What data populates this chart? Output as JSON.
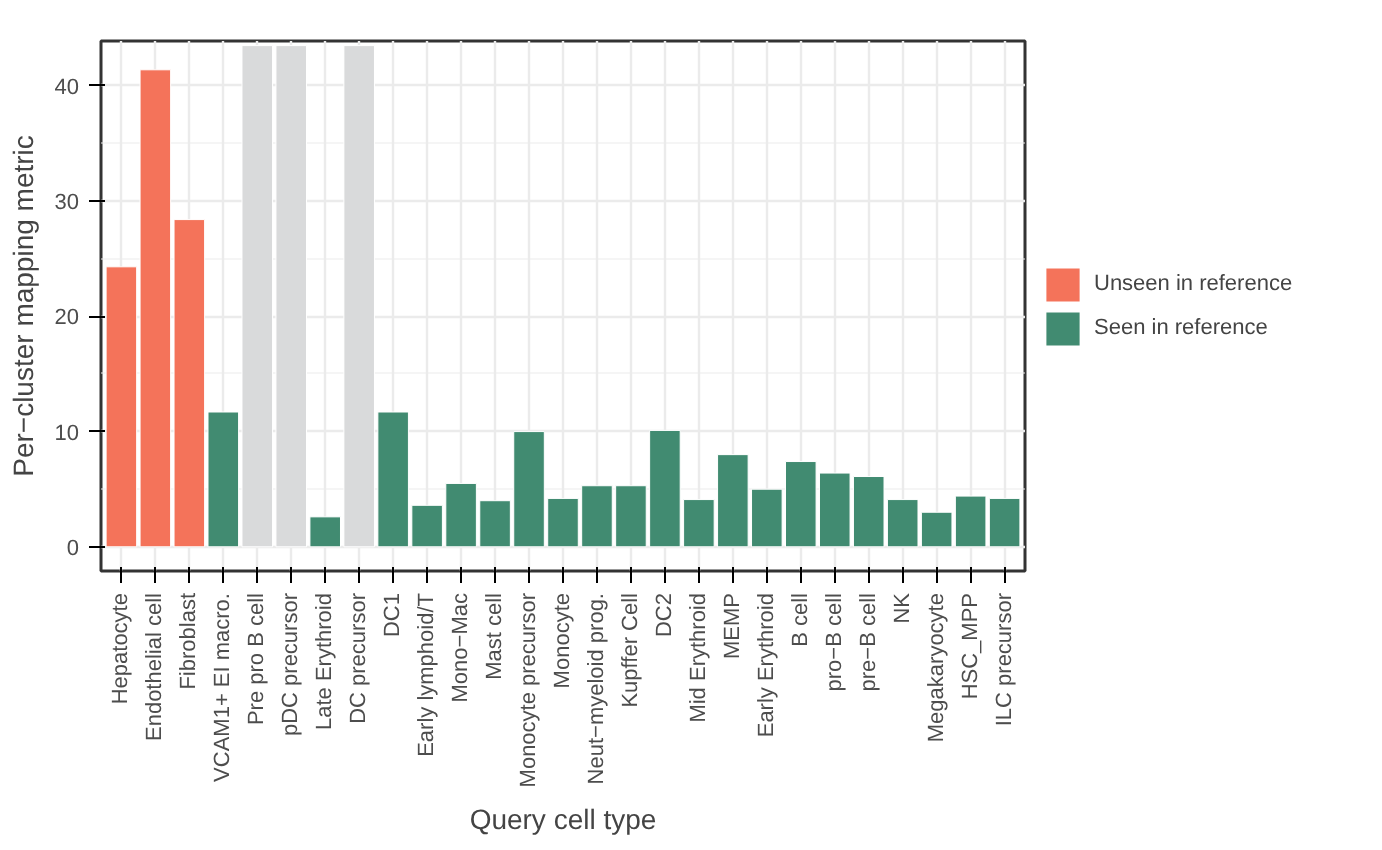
{
  "chart_data": {
    "type": "bar",
    "xlabel": "Query cell type",
    "ylabel": "Per−cluster mapping metric",
    "categories": [
      "Hepatocyte",
      "Endothelial cell",
      "Fibroblast",
      "VCAM1+ EI macro.",
      "Pre pro B cell",
      "pDC precursor",
      "Late Erythroid",
      "DC precursor",
      "DC1",
      "Early lymphoid/T",
      "Mono−Mac",
      "Mast cell",
      "Monocyte precursor",
      "Monocyte",
      "Neut−myeloid prog.",
      "Kupffer Cell",
      "DC2",
      "Mid Erythroid",
      "MEMP",
      "Early Erythroid",
      "B cell",
      "pro−B cell",
      "pre−B cell",
      "NK",
      "Megakaryocyte",
      "HSC_MPP",
      "ILC precursor"
    ],
    "series": [
      {
        "color": "#d9dadb",
        "values": [
          null,
          null,
          null,
          null,
          43.5,
          43.5,
          null,
          43.5,
          null,
          null,
          null,
          null,
          null,
          null,
          null,
          null,
          null,
          null,
          null,
          null,
          null,
          null,
          null,
          null,
          null,
          null,
          null
        ]
      },
      {
        "name": "Unseen in reference",
        "color": "#f4735a",
        "values": [
          24.3,
          41.4,
          28.4,
          null,
          null,
          null,
          null,
          null,
          null,
          null,
          null,
          null,
          null,
          null,
          null,
          null,
          null,
          null,
          null,
          null,
          null,
          null,
          null,
          null,
          null,
          null,
          null
        ]
      },
      {
        "name": "Seen in reference",
        "color": "#418b71",
        "values": [
          null,
          null,
          null,
          11.7,
          null,
          null,
          2.6,
          null,
          11.7,
          3.6,
          5.5,
          4.0,
          10.0,
          4.2,
          5.3,
          5.3,
          10.1,
          4.1,
          8.0,
          5.0,
          7.4,
          6.4,
          6.1,
          4.1,
          3.0,
          4.4,
          4.2
        ]
      }
    ],
    "ylim": [
      -2.1,
      43.9
    ],
    "yticks": [
      0,
      10,
      20,
      30,
      40
    ],
    "grid": true,
    "legend": "right"
  }
}
